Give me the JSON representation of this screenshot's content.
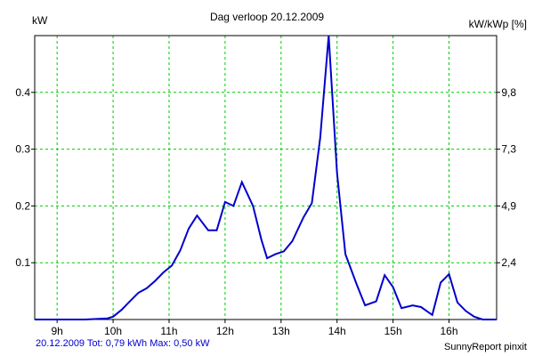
{
  "chart_data": {
    "type": "line",
    "title": "Dag  verloop 20.12.2009",
    "ylabel": "kW",
    "y2label": "kW/kWp [%]",
    "footer_left": "20.12.2009 Tot: 0,79 kWh Max: 0,50 kW",
    "footer_right": "SunnyReport pinxit",
    "xlim": [
      8.6,
      16.85
    ],
    "ylim": [
      0,
      0.5
    ],
    "x_ticks": [
      {
        "x": 9,
        "label": "9h"
      },
      {
        "x": 10,
        "label": "10h"
      },
      {
        "x": 11,
        "label": "11h"
      },
      {
        "x": 12,
        "label": "12h"
      },
      {
        "x": 13,
        "label": "13h"
      },
      {
        "x": 14,
        "label": "14h"
      },
      {
        "x": 15,
        "label": "15h"
      },
      {
        "x": 16,
        "label": "16h"
      }
    ],
    "y_ticks": [
      {
        "y": 0.1,
        "label": "0.1"
      },
      {
        "y": 0.2,
        "label": "0.2"
      },
      {
        "y": 0.3,
        "label": "0.3"
      },
      {
        "y": 0.4,
        "label": "0.4"
      }
    ],
    "y2_ticks": [
      {
        "y": 0.1,
        "label": "2,4"
      },
      {
        "y": 0.2,
        "label": "4,9"
      },
      {
        "y": 0.3,
        "label": "7,3"
      },
      {
        "y": 0.4,
        "label": "9,8"
      }
    ],
    "grid": true,
    "colors": {
      "line": "#0000cc",
      "grid": "#00cc00"
    },
    "series": [
      {
        "x": [
          8.6,
          9.5,
          9.9,
          10.0,
          10.15,
          10.3,
          10.45,
          10.6,
          10.75,
          10.9,
          11.05,
          11.2,
          11.35,
          11.5,
          11.7,
          11.85,
          12.0,
          12.15,
          12.3,
          12.5,
          12.65,
          12.75,
          12.9,
          13.05,
          13.2,
          13.4,
          13.55,
          13.7,
          13.85,
          14.0,
          14.15,
          14.35,
          14.5,
          14.7,
          14.85,
          15.0,
          15.15,
          15.35,
          15.5,
          15.7,
          15.85,
          16.0,
          16.15,
          16.3,
          16.45,
          16.6,
          16.72,
          16.85
        ],
        "y": [
          0.0,
          0.0,
          0.002,
          0.005,
          0.017,
          0.032,
          0.047,
          0.055,
          0.068,
          0.083,
          0.095,
          0.122,
          0.16,
          0.183,
          0.157,
          0.157,
          0.207,
          0.2,
          0.242,
          0.2,
          0.14,
          0.108,
          0.115,
          0.12,
          0.138,
          0.18,
          0.205,
          0.32,
          0.5,
          0.258,
          0.115,
          0.062,
          0.025,
          0.032,
          0.078,
          0.057,
          0.02,
          0.025,
          0.022,
          0.008,
          0.065,
          0.08,
          0.03,
          0.015,
          0.005,
          0.0,
          0.0,
          0.0
        ]
      }
    ]
  }
}
